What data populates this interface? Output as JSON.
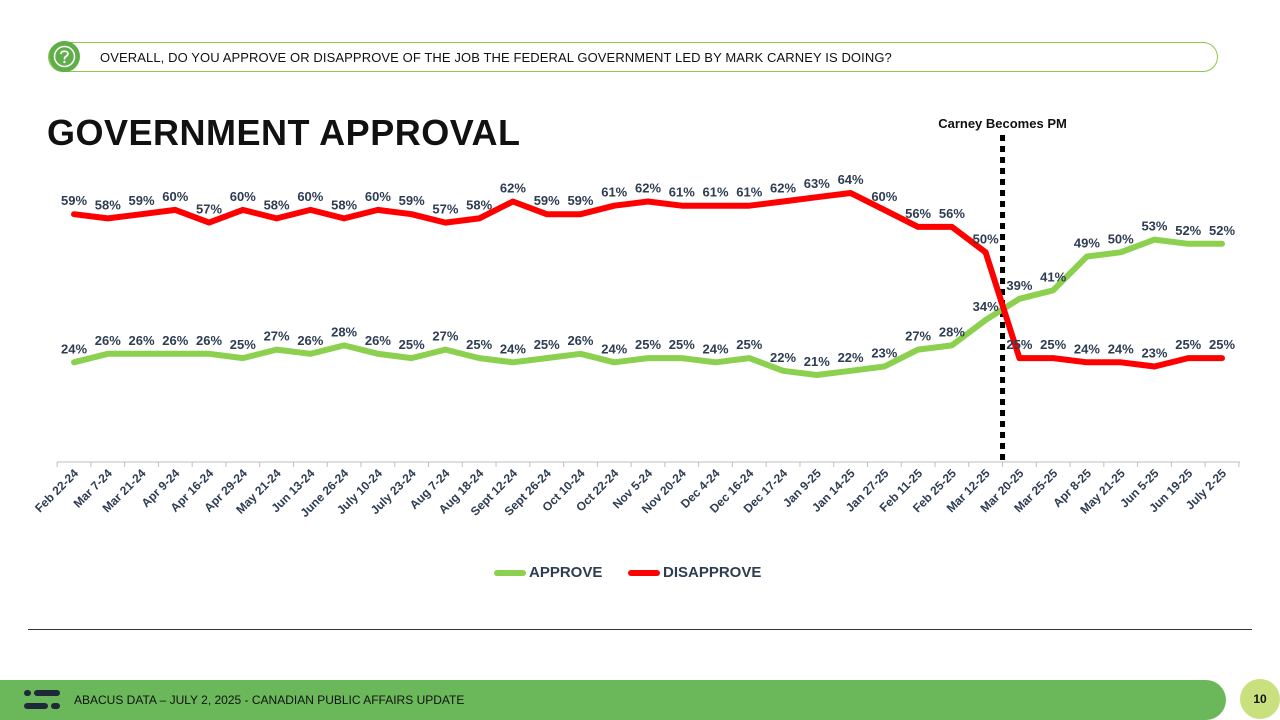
{
  "question": {
    "text": "OVERALL, DO YOU APPROVE OR DISAPPROVE OF THE JOB THE FEDERAL GOVERNMENT LED BY MARK CARNEY IS DOING?"
  },
  "title": "GOVERNMENT APPROVAL",
  "footer": {
    "text": "ABACUS DATA – JULY 2, 2025 - CANADIAN PUBLIC AFFAIRS UPDATE",
    "page": "10"
  },
  "colors": {
    "approve": "#8cd04f",
    "disapprove": "#ff0000",
    "accent_green": "#6bb85a",
    "label": "#2e3d52"
  },
  "icons": {
    "question": "question-mark-icon",
    "logo": "abacus-logo-icon"
  },
  "chart_data": {
    "type": "line",
    "categories": [
      "Feb 22-24",
      "Mar 7-24",
      "Mar 21-24",
      "Apr 9-24",
      "Apr 16-24",
      "Apr 29-24",
      "May 21-24",
      "Jun 13-24",
      "June 26-24",
      "July 10-24",
      "July 23-24",
      "Aug 7-24",
      "Aug 18-24",
      "Sept 12-24",
      "Sept 26-24",
      "Oct 10-24",
      "Oct 22-24",
      "Nov 5-24",
      "Nov 20-24",
      "Dec 4-24",
      "Dec 16-24",
      "Dec 17-24",
      "Jan 9-25",
      "Jan 14-25",
      "Jan 27-25",
      "Feb 11-25",
      "Feb 25-25",
      "Mar 12-25",
      "Mar 20-25",
      "Mar 25-25",
      "Apr 8-25",
      "May 21-25",
      "Jun 5-25",
      "Jun 19-25",
      "July 2-25"
    ],
    "series": [
      {
        "name": "APPROVE",
        "values": [
          24,
          26,
          26,
          26,
          26,
          25,
          27,
          26,
          28,
          26,
          25,
          27,
          25,
          24,
          25,
          26,
          24,
          25,
          25,
          24,
          25,
          22,
          21,
          22,
          23,
          27,
          28,
          34,
          39,
          41,
          49,
          50,
          53,
          52,
          52
        ]
      },
      {
        "name": "DISAPPROVE",
        "values": [
          59,
          58,
          59,
          60,
          57,
          60,
          58,
          60,
          58,
          60,
          59,
          57,
          58,
          62,
          59,
          59,
          61,
          62,
          61,
          61,
          61,
          62,
          63,
          64,
          60,
          56,
          56,
          50,
          25,
          25,
          24,
          24,
          23,
          25,
          25
        ]
      }
    ],
    "ylim": [
      10,
      70
    ],
    "annotation": {
      "label": "Carney Becomes PM",
      "between": [
        "Mar 12-25",
        "Mar 20-25"
      ]
    },
    "legend_position": "bottom",
    "grid": false
  }
}
